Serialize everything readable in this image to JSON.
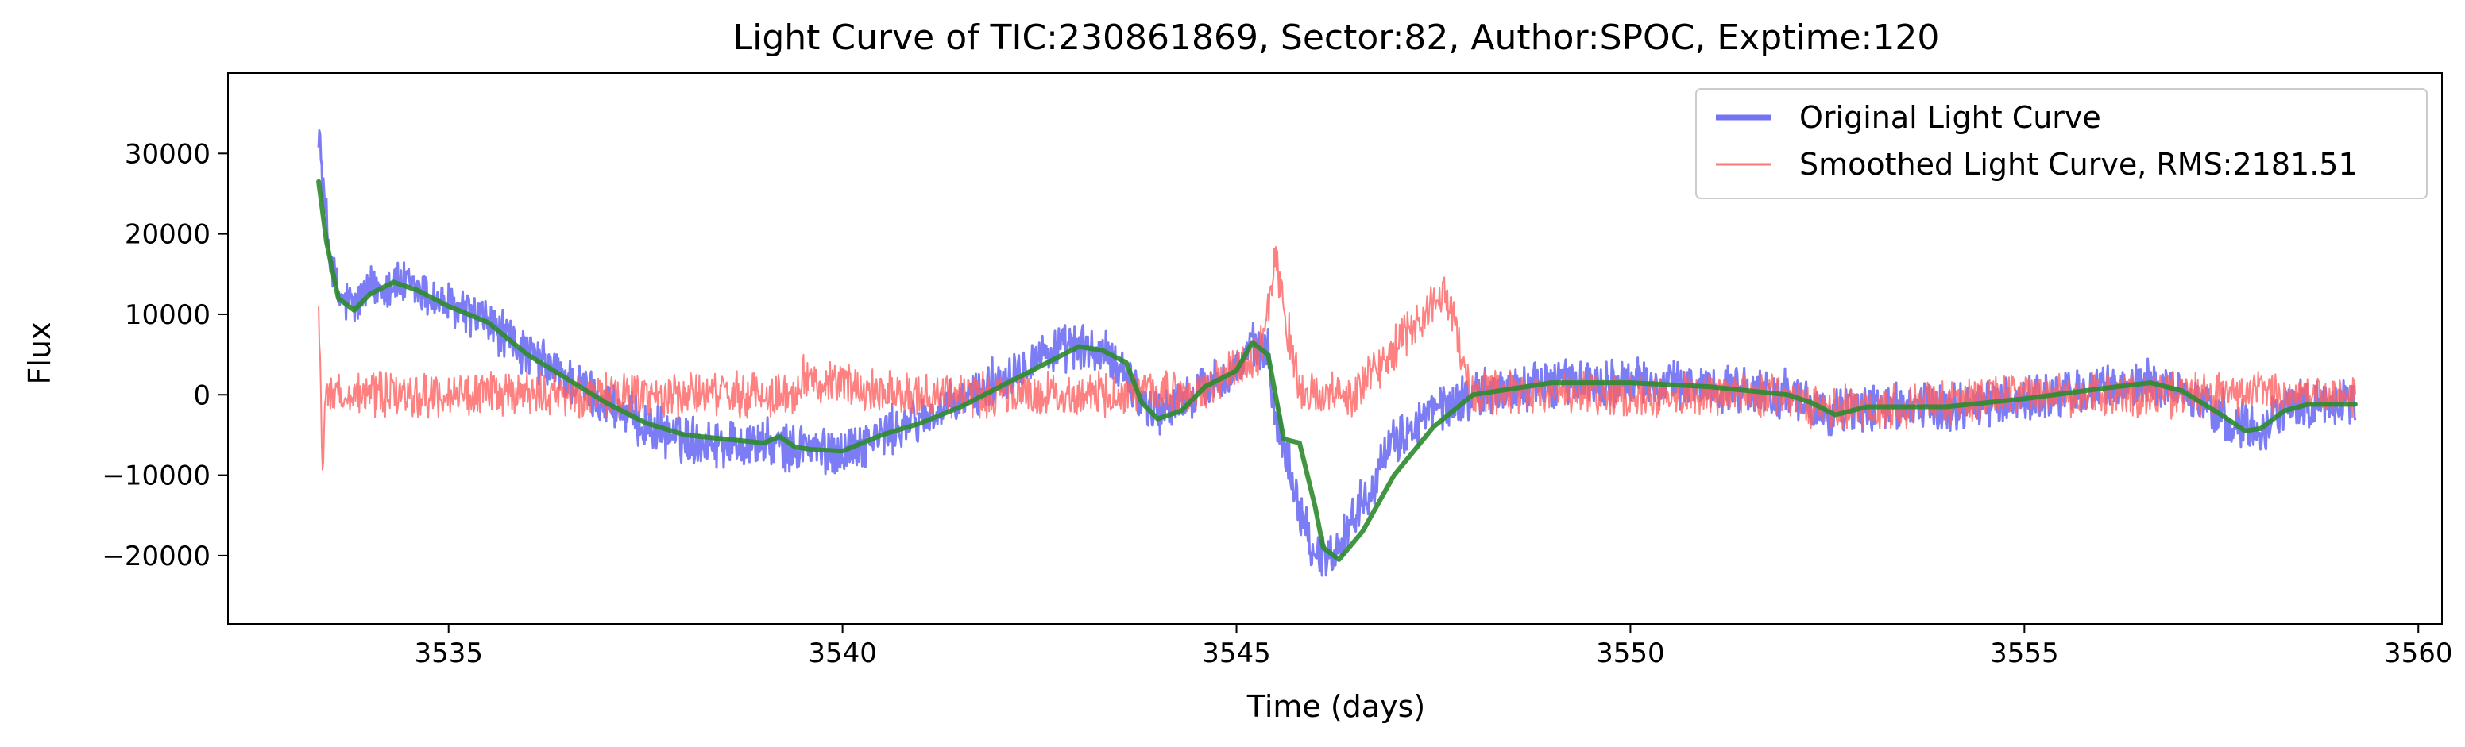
{
  "chart_data": {
    "type": "line",
    "title": "Light Curve of TIC:230861869, Sector:82, Author:SPOC, Exptime:120",
    "xlabel": "Time (days)",
    "ylabel": "Flux",
    "xlim": [
      3532.2,
      3560.3
    ],
    "ylim": [
      -28500,
      40000
    ],
    "xticks": [
      3535,
      3540,
      3545,
      3550,
      3555,
      3560
    ],
    "yticks": [
      -20000,
      -10000,
      0,
      10000,
      20000,
      30000
    ],
    "xtick_labels": [
      "3535",
      "3540",
      "3545",
      "3550",
      "3555",
      "3560"
    ],
    "ytick_labels": [
      "−20000",
      "−10000",
      "0",
      "10000",
      "20000",
      "30000"
    ],
    "grid": false,
    "legend_position": "top-right",
    "series": [
      {
        "name": "Original Light Curve",
        "color": "#5050f0",
        "x": [
          3533.35,
          3533.4,
          3533.5,
          3533.6,
          3533.8,
          3534.0,
          3534.3,
          3534.6,
          3535.0,
          3535.5,
          3536.0,
          3536.5,
          3537.0,
          3537.5,
          3538.0,
          3538.5,
          3539.0,
          3539.4,
          3539.5,
          3539.7,
          3540.0,
          3540.5,
          3541.0,
          3541.5,
          3542.0,
          3542.5,
          3543.0,
          3543.3,
          3543.6,
          3543.8,
          3544.0,
          3544.3,
          3544.6,
          3545.0,
          3545.2,
          3545.4,
          3545.5,
          3545.6,
          3545.8,
          3546.0,
          3546.2,
          3546.5,
          3547.0,
          3547.5,
          3548.0,
          3549.0,
          3550.0,
          3551.0,
          3551.5,
          3552.0,
          3552.3,
          3552.6,
          3553.0,
          3554.0,
          3555.0,
          3556.0,
          3556.6,
          3557.0,
          3557.5,
          3557.8,
          3558.0,
          3558.3,
          3558.6,
          3559.2
        ],
        "y": [
          34000,
          26000,
          17000,
          12000,
          11000,
          13000,
          14000,
          13000,
          11000,
          9000,
          5000,
          2000,
          -1000,
          -4000,
          -5500,
          -6000,
          -6000,
          -7000,
          -6000,
          -7000,
          -7000,
          -5000,
          -3000,
          -1000,
          2000,
          5000,
          6000,
          5000,
          3000,
          -1000,
          -2000,
          -1000,
          1000,
          3000,
          6000,
          5000,
          -3000,
          -6000,
          -14000,
          -20000,
          -20000,
          -15000,
          -6000,
          -2000,
          0,
          1500,
          1500,
          1000,
          500,
          0,
          -2000,
          -2000,
          -1500,
          -1500,
          -500,
          500,
          1500,
          500,
          -2500,
          -4000,
          -4000,
          -1500,
          -1000,
          -1000
        ]
      },
      {
        "name": "Smoothed Light Curve, RMS:2181.51",
        "color": "#ff6060",
        "x": [
          3533.35,
          3533.4,
          3533.45,
          3533.5,
          3535.0,
          3537.0,
          3539.4,
          3539.5,
          3541.0,
          3543.0,
          3544.5,
          3545.3,
          3545.5,
          3545.8,
          3546.5,
          3547.65,
          3548.0,
          3550.0,
          3552.0,
          3552.3,
          3555.0,
          3557.0,
          3559.2
        ],
        "y": [
          10000,
          -8000,
          1000,
          0,
          0,
          0,
          0,
          2000,
          0,
          0,
          0,
          5000,
          17000,
          0,
          0,
          13000,
          0,
          0,
          0,
          -2000,
          0,
          0,
          0
        ]
      },
      {
        "name": "",
        "color": "#2e8b2e",
        "x": [
          3533.35,
          3533.45,
          3533.6,
          3533.8,
          3534.0,
          3534.3,
          3534.6,
          3535.0,
          3535.5,
          3536.0,
          3536.5,
          3537.0,
          3537.5,
          3538.0,
          3538.5,
          3539.0,
          3539.2,
          3539.4,
          3539.6,
          3540.0,
          3540.5,
          3541.0,
          3541.5,
          3542.0,
          3542.5,
          3543.0,
          3543.3,
          3543.6,
          3543.8,
          3544.0,
          3544.3,
          3544.6,
          3545.0,
          3545.2,
          3545.4,
          3545.6,
          3545.8,
          3546.0,
          3546.1,
          3546.3,
          3546.6,
          3547.0,
          3547.5,
          3548.0,
          3549.0,
          3550.0,
          3551.0,
          3551.5,
          3552.0,
          3552.3,
          3552.6,
          3553.0,
          3554.0,
          3555.0,
          3556.0,
          3556.6,
          3557.0,
          3557.5,
          3557.8,
          3558.0,
          3558.3,
          3558.6,
          3559.2
        ],
        "y": [
          26500,
          19000,
          12000,
          10500,
          12500,
          14000,
          13000,
          11000,
          9000,
          5000,
          2000,
          -1000,
          -3500,
          -5000,
          -5500,
          -6000,
          -5200,
          -6500,
          -6800,
          -7000,
          -5000,
          -3500,
          -1500,
          1000,
          3500,
          6000,
          5500,
          4000,
          -1000,
          -3000,
          -2000,
          1000,
          3000,
          6500,
          5000,
          -5500,
          -6000,
          -14000,
          -19000,
          -20500,
          -17000,
          -10000,
          -4000,
          0,
          1500,
          1500,
          1000,
          500,
          0,
          -1000,
          -2500,
          -1500,
          -1500,
          -500,
          800,
          1500,
          500,
          -2500,
          -4500,
          -4200,
          -2000,
          -1200,
          -1200
        ]
      }
    ]
  }
}
